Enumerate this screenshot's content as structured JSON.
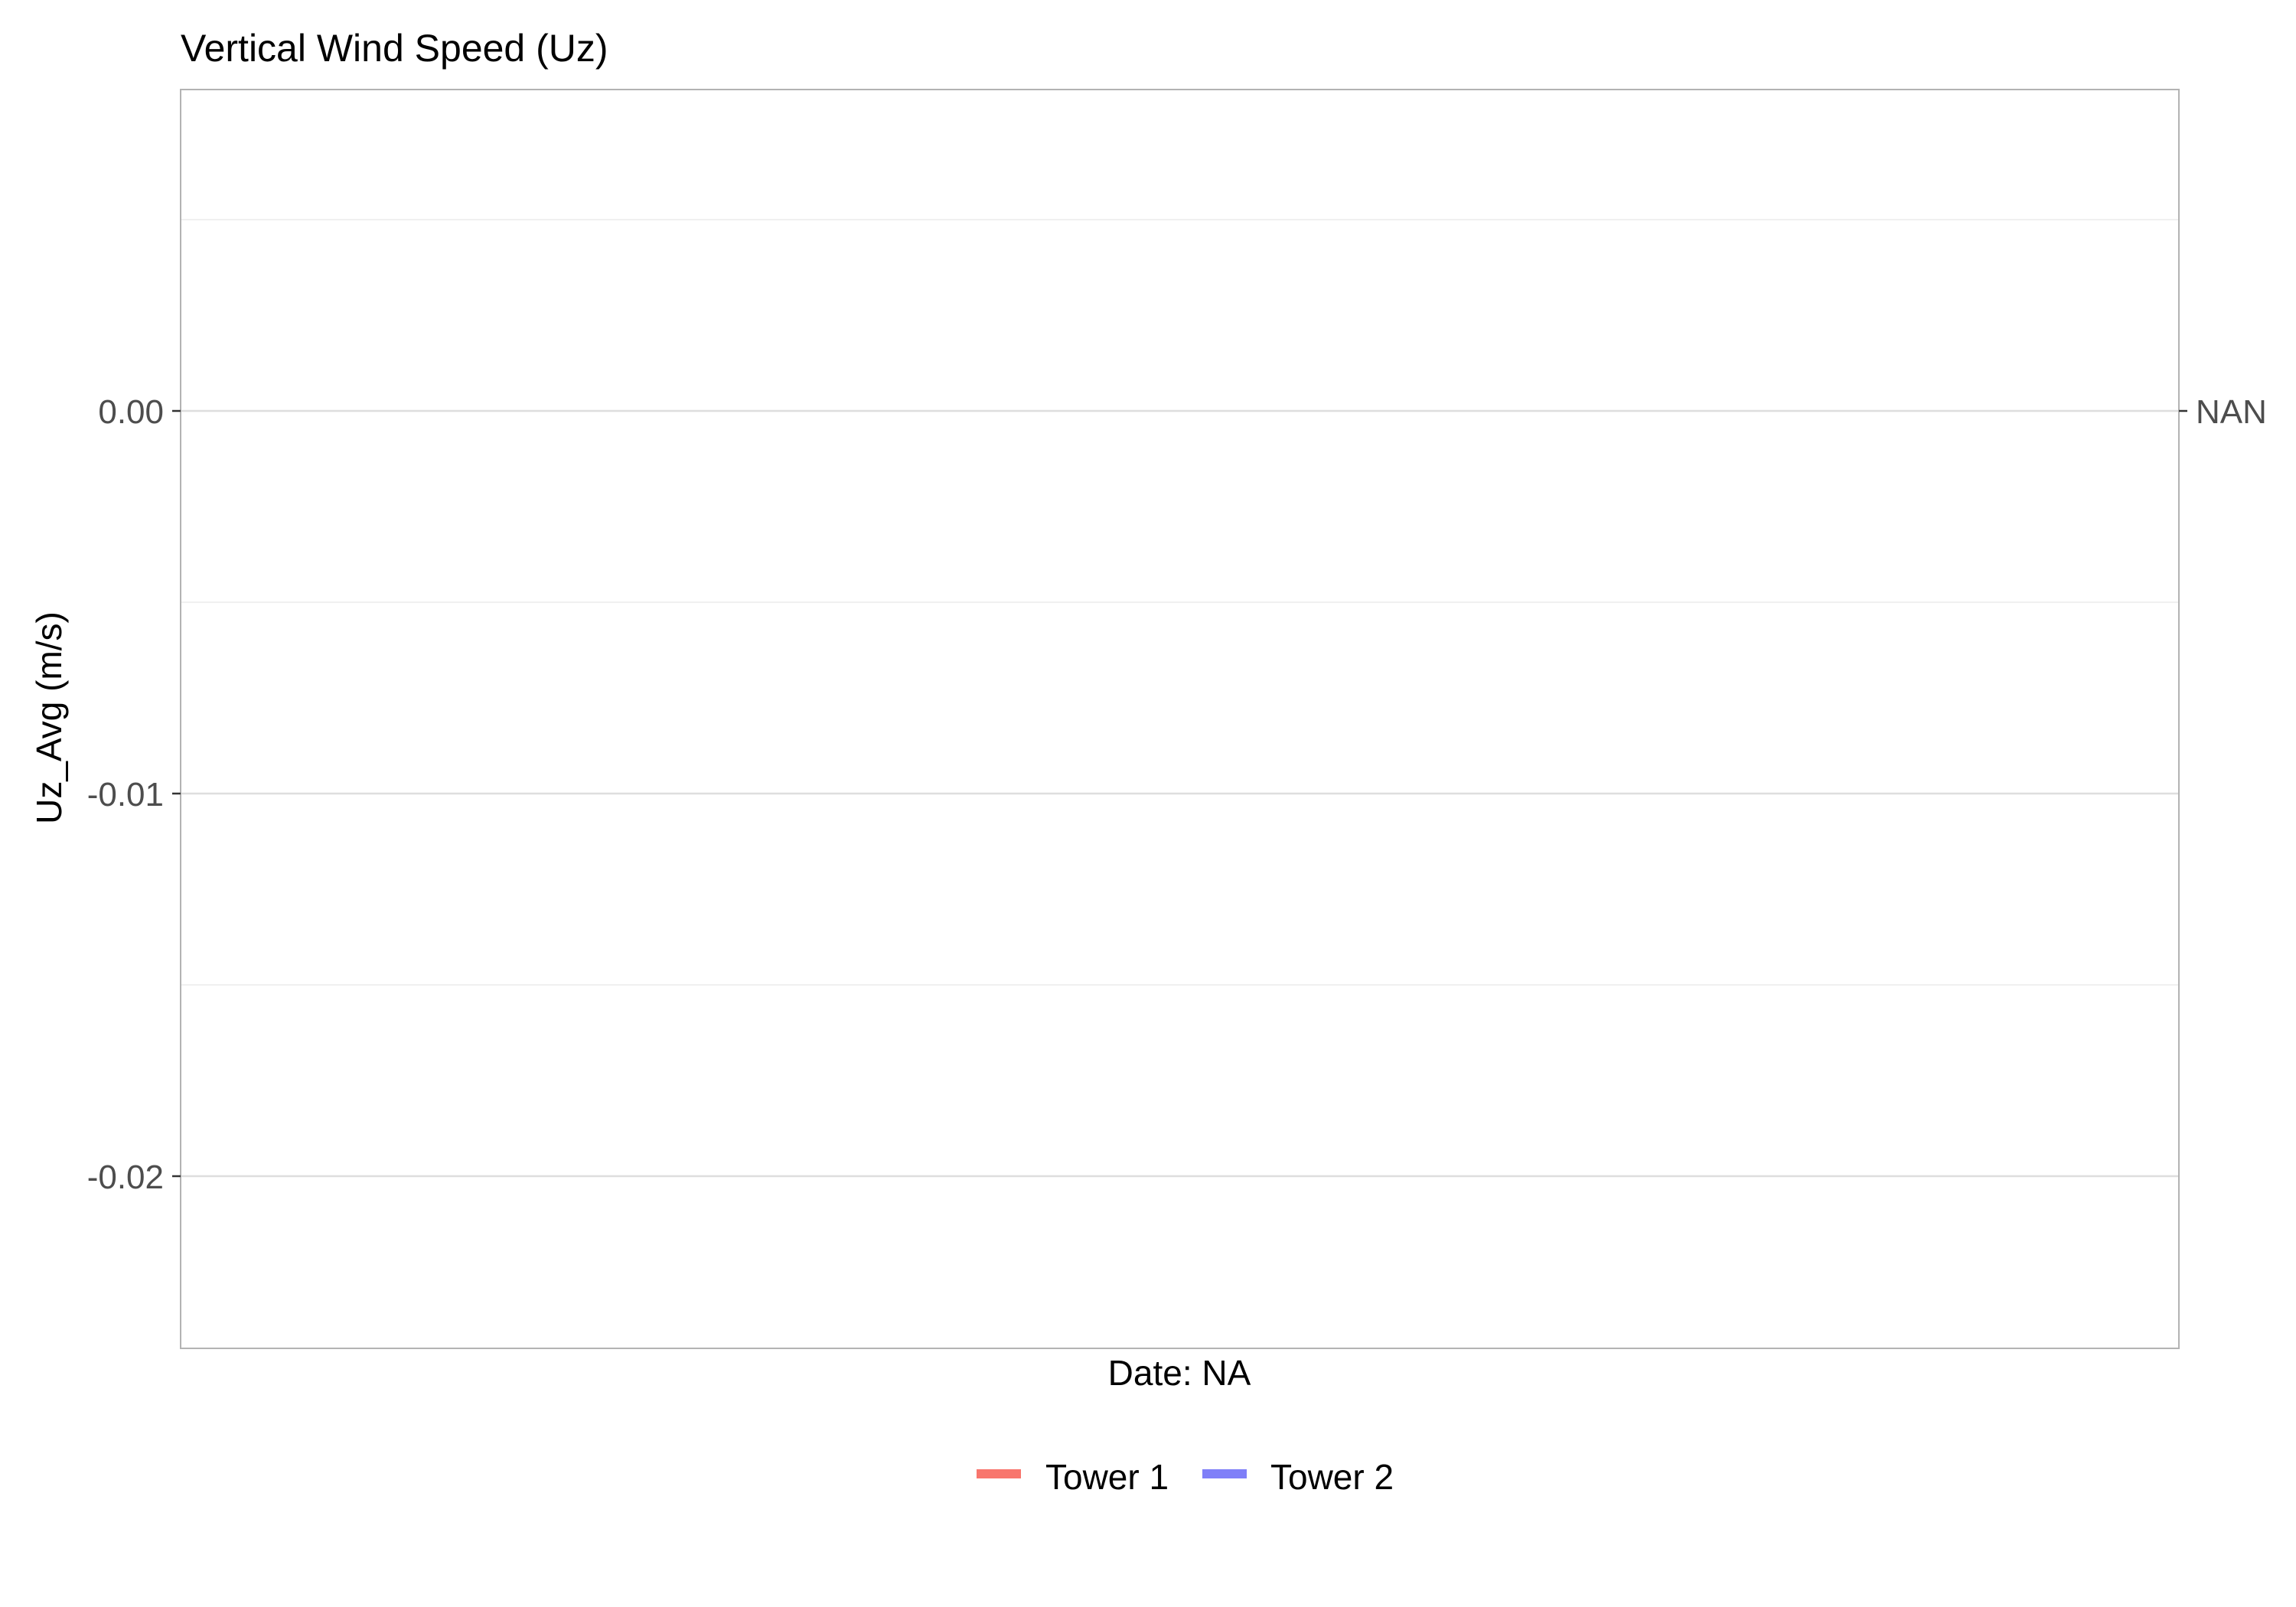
{
  "chart_data": {
    "type": "line",
    "title": "Vertical Wind Speed (Uz)",
    "xlabel": "Date: NA",
    "ylabel": "Uz_Avg (m/s)",
    "ylim": [
      -0.0245,
      0.0084
    ],
    "y_major_ticks": [
      0.0,
      -0.01,
      -0.02
    ],
    "y_minor_ticks": [
      0.005,
      -0.005,
      -0.015
    ],
    "y_tick_labels": [
      "0.00",
      "-0.01",
      "-0.02"
    ],
    "secondary_axis": {
      "side": "right",
      "tick_value": 0.0,
      "tick_label": "NAN"
    },
    "grid": true,
    "legend_position": "bottom",
    "series": [
      {
        "name": "Tower 1",
        "color": "#f8766d",
        "values": []
      },
      {
        "name": "Tower 2",
        "color": "#7f7ff8",
        "values": []
      }
    ]
  }
}
